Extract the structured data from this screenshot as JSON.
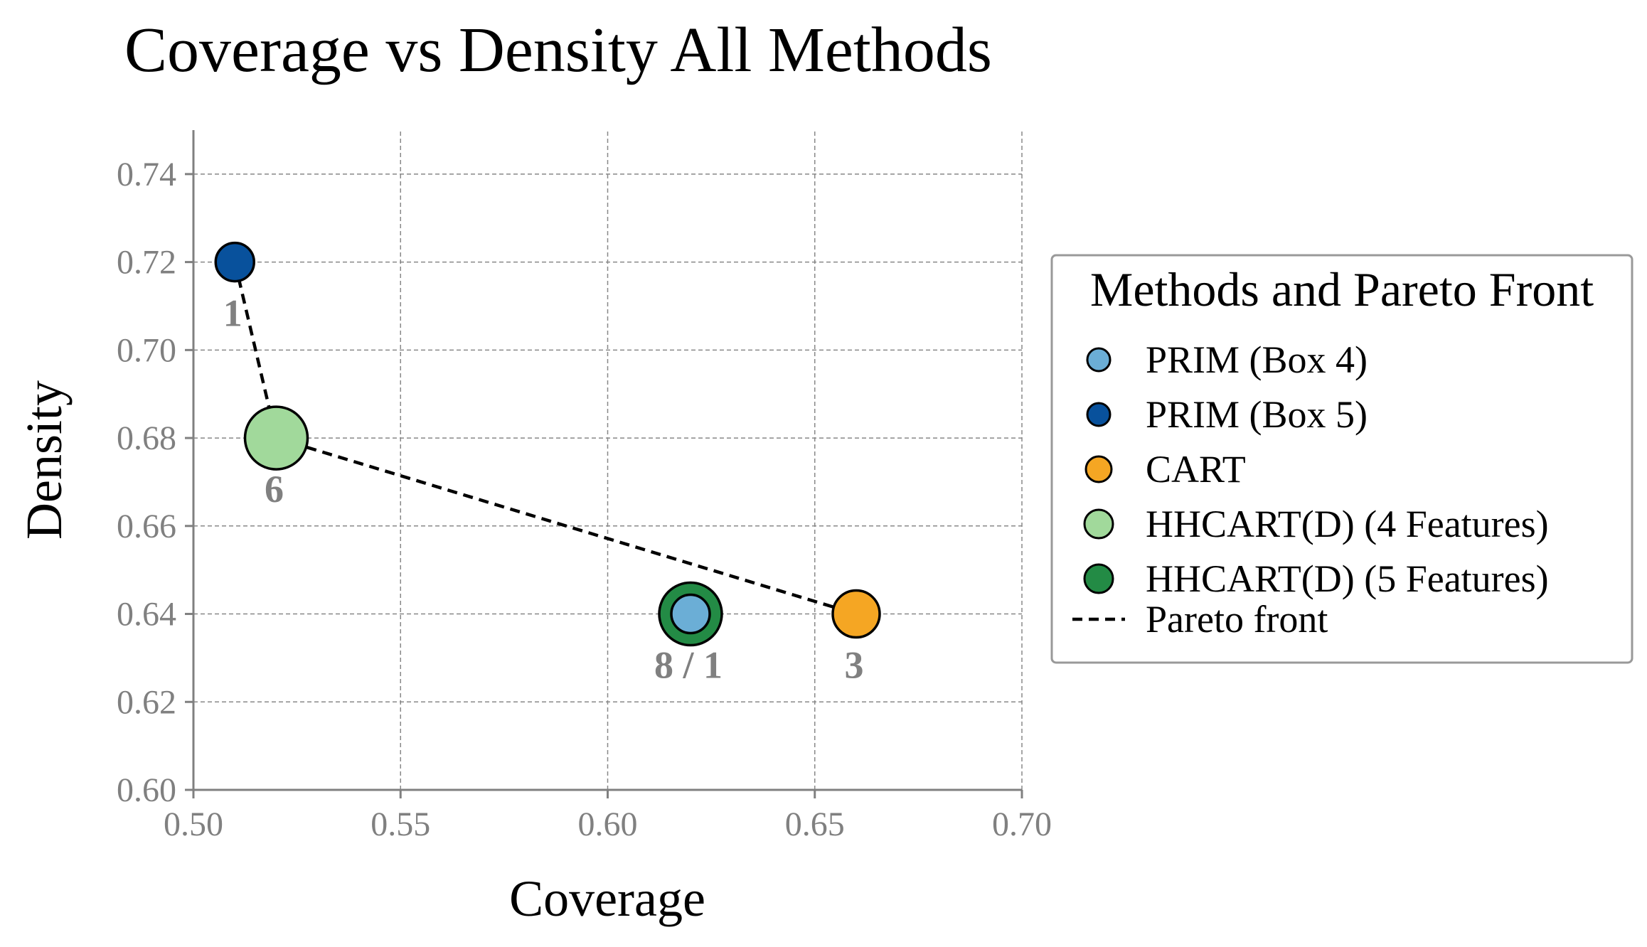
{
  "chart_data": {
    "type": "scatter",
    "title": "Coverage vs Density All Methods",
    "xlabel": "Coverage",
    "ylabel": "Density",
    "xlim": [
      0.5,
      0.7
    ],
    "ylim": [
      0.6,
      0.75
    ],
    "x_ticks": [
      "0.50",
      "0.55",
      "0.60",
      "0.65",
      "0.70"
    ],
    "y_ticks": [
      "0.60",
      "0.62",
      "0.64",
      "0.66",
      "0.68",
      "0.70",
      "0.72",
      "0.74"
    ],
    "grid": true,
    "legend_placement": "outside-right",
    "legend_title": "Methods and Pareto Front",
    "series": [
      {
        "name": "PRIM (Box 4)",
        "color": "#6baed6",
        "x": 0.62,
        "y": 0.64,
        "size": "small",
        "label": ""
      },
      {
        "name": "PRIM (Box 5)",
        "color": "#08519c",
        "x": 0.51,
        "y": 0.72,
        "size": "small",
        "label": "1"
      },
      {
        "name": "CART",
        "color": "#f5a623",
        "x": 0.66,
        "y": 0.64,
        "size": "medium",
        "label": "3"
      },
      {
        "name": "HHCART(D) (4 Features)",
        "color": "#a1d99b",
        "x": 0.52,
        "y": 0.68,
        "size": "large",
        "label": "6"
      },
      {
        "name": "HHCART(D) (5 Features)",
        "color": "#238b45",
        "x": 0.62,
        "y": 0.64,
        "size": "large",
        "label": "8 / 1"
      }
    ],
    "pareto_front": {
      "name": "Pareto front",
      "x": [
        0.51,
        0.52,
        0.66
      ],
      "y": [
        0.72,
        0.68,
        0.64
      ]
    }
  }
}
